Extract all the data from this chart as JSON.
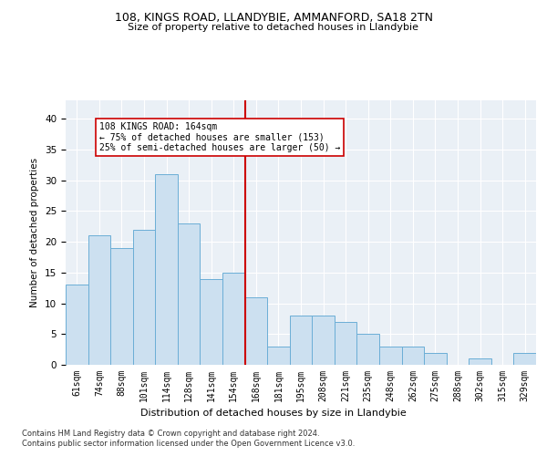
{
  "title1": "108, KINGS ROAD, LLANDYBIE, AMMANFORD, SA18 2TN",
  "title2": "Size of property relative to detached houses in Llandybie",
  "xlabel": "Distribution of detached houses by size in Llandybie",
  "ylabel": "Number of detached properties",
  "bar_labels": [
    "61sqm",
    "74sqm",
    "88sqm",
    "101sqm",
    "114sqm",
    "128sqm",
    "141sqm",
    "154sqm",
    "168sqm",
    "181sqm",
    "195sqm",
    "208sqm",
    "221sqm",
    "235sqm",
    "248sqm",
    "262sqm",
    "275sqm",
    "288sqm",
    "302sqm",
    "315sqm",
    "329sqm"
  ],
  "bar_values": [
    13,
    21,
    19,
    22,
    31,
    23,
    14,
    15,
    11,
    3,
    8,
    8,
    7,
    5,
    3,
    3,
    2,
    0,
    1,
    0,
    2
  ],
  "bar_color": "#cce0f0",
  "bar_edgecolor": "#6baed6",
  "vline_x_idx": 8,
  "vline_color": "#cc0000",
  "annotation_text": "108 KINGS ROAD: 164sqm\n← 75% of detached houses are smaller (153)\n25% of semi-detached houses are larger (50) →",
  "annotation_box_color": "#ffffff",
  "annotation_box_edgecolor": "#cc0000",
  "ylim": [
    0,
    43
  ],
  "yticks": [
    0,
    5,
    10,
    15,
    20,
    25,
    30,
    35,
    40
  ],
  "bg_color": "#eaf0f6",
  "grid_color": "#ffffff",
  "footer1": "Contains HM Land Registry data © Crown copyright and database right 2024.",
  "footer2": "Contains public sector information licensed under the Open Government Licence v3.0."
}
